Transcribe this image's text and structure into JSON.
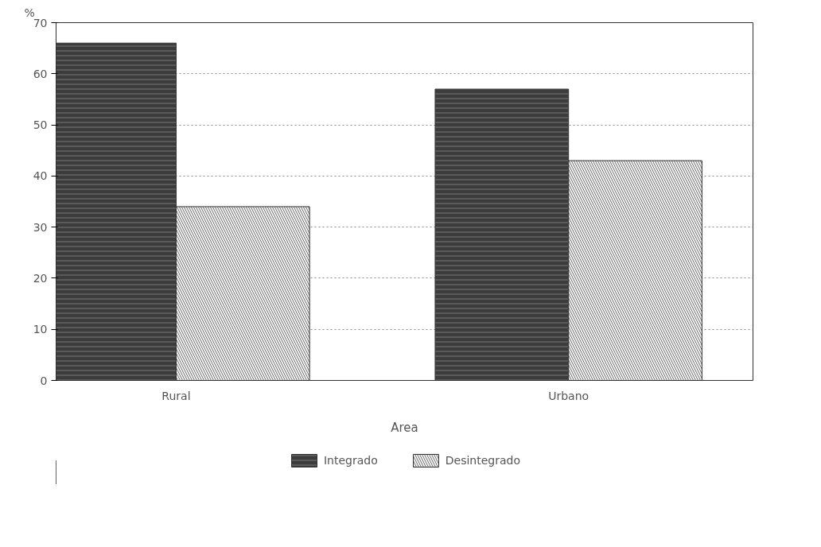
{
  "chart_data": {
    "type": "bar",
    "xlabel": "Area",
    "ylabel": "%",
    "categories": [
      "Rural",
      "Urbano"
    ],
    "series": [
      {
        "name": "Integrado",
        "color": "#3c3c3c",
        "values": [
          66,
          57
        ]
      },
      {
        "name": "Desintegrado",
        "color": "#f2f2f2",
        "values": [
          34,
          43
        ]
      }
    ],
    "ylim": [
      0,
      70
    ],
    "yticks": [
      0,
      10,
      20,
      30,
      40,
      50,
      60,
      70
    ],
    "grid": "y",
    "legend": "bottom"
  }
}
